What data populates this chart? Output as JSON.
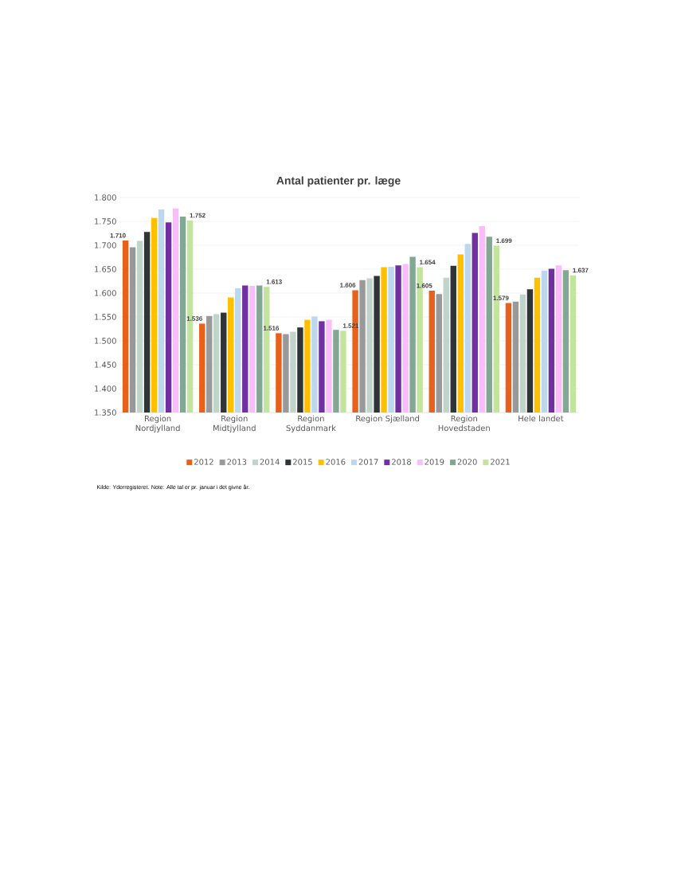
{
  "chart_data": {
    "type": "bar",
    "title": "Antal patienter pr. læge",
    "categories": [
      "Region Nordjylland",
      "Region Midtjylland",
      "Region Syddanmark",
      "Region Sjælland",
      "Region Hovedstaden",
      "Hele landet"
    ],
    "series": [
      {
        "name": "2012",
        "color": "#e8611c",
        "values": [
          1710,
          1536,
          1516,
          1606,
          1605,
          1579
        ],
        "value_labels": [
          "1.710",
          "1.536",
          "1.516",
          "1.606",
          "1.605",
          "1.579"
        ]
      },
      {
        "name": "2013",
        "color": "#999999",
        "values": [
          1696,
          1552,
          1514,
          1627,
          1598,
          1582
        ]
      },
      {
        "name": "2014",
        "color": "#c0d4c9",
        "values": [
          1709,
          1556,
          1519,
          1631,
          1632,
          1597
        ]
      },
      {
        "name": "2015",
        "color": "#2f3437",
        "values": [
          1728,
          1559,
          1528,
          1636,
          1657,
          1608
        ]
      },
      {
        "name": "2016",
        "color": "#ffc000",
        "values": [
          1757,
          1591,
          1544,
          1654,
          1681,
          1632
        ]
      },
      {
        "name": "2017",
        "color": "#bdd7ee",
        "values": [
          1775,
          1610,
          1551,
          1655,
          1703,
          1647
        ]
      },
      {
        "name": "2018",
        "color": "#7030a0",
        "values": [
          1748,
          1616,
          1541,
          1658,
          1726,
          1651
        ]
      },
      {
        "name": "2019",
        "color": "#f9bdfc",
        "values": [
          1777,
          1615,
          1544,
          1661,
          1740,
          1658
        ]
      },
      {
        "name": "2020",
        "color": "#82a894",
        "values": [
          1760,
          1616,
          1523,
          1676,
          1718,
          1648
        ]
      },
      {
        "name": "2021",
        "color": "#c2e49c",
        "values": [
          1752,
          1613,
          1521,
          1654,
          1699,
          1637
        ],
        "value_labels": [
          "1.752",
          "1.613",
          "1.521",
          "1.654",
          "1.699",
          "1.637"
        ]
      }
    ],
    "ylim": [
      1350,
      1800
    ],
    "yticks": [
      {
        "value": 1350,
        "label": "1.350"
      },
      {
        "value": 1400,
        "label": "1.400"
      },
      {
        "value": 1450,
        "label": "1.450"
      },
      {
        "value": 1500,
        "label": "1.500"
      },
      {
        "value": 1550,
        "label": "1.550"
      },
      {
        "value": 1600,
        "label": "1.600"
      },
      {
        "value": 1650,
        "label": "1.650"
      },
      {
        "value": 1700,
        "label": "1.700"
      },
      {
        "value": 1750,
        "label": "1.750"
      },
      {
        "value": 1800,
        "label": "1.800"
      }
    ],
    "grid": "y",
    "legend": "bottom",
    "annotations": [
      "Kilde: Yderregisteret. Note: Alle tal er pr. januar i det givne år."
    ]
  }
}
